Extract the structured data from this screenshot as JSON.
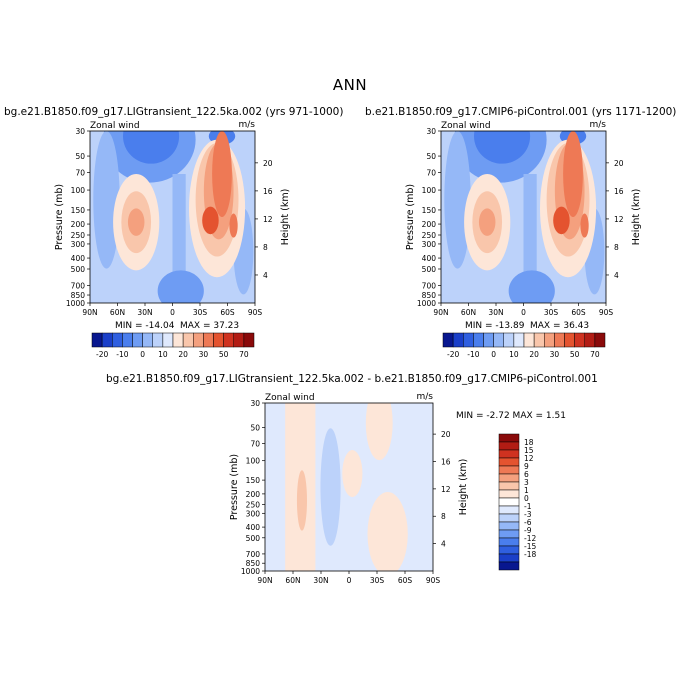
{
  "page": {
    "title": "ANN"
  },
  "chart_data": [
    {
      "type": "heatmap",
      "title": "bg.e21.B1850.f09_g17.LIGtransient_122.5ka.002 (yrs 971-1000)",
      "left_label": "Zonal wind",
      "right_label": "m/s",
      "xlabel": "",
      "ylabel": "Pressure (mb)",
      "y2label": "Height (km)",
      "x_ticks": [
        "90N",
        "60N",
        "30N",
        "0",
        "30S",
        "60S",
        "90S"
      ],
      "y_ticks": [
        "30",
        "50",
        "70",
        "100",
        "150",
        "200",
        "250",
        "300",
        "400",
        "500",
        "700",
        "850",
        "1000"
      ],
      "y2_ticks": [
        "20",
        "16",
        "12",
        "8",
        "4"
      ],
      "min": -14.04,
      "max": 37.23,
      "min_text": "MIN = -14.04",
      "max_text": "MAX = 37.23"
    },
    {
      "type": "heatmap",
      "title": "b.e21.B1850.f09_g17.CMIP6-piControl.001 (yrs 1171-1200)",
      "left_label": "Zonal wind",
      "right_label": "m/s",
      "xlabel": "",
      "ylabel": "Pressure (mb)",
      "y2label": "Height (km)",
      "x_ticks": [
        "90N",
        "60N",
        "30N",
        "0",
        "30S",
        "60S",
        "90S"
      ],
      "y_ticks": [
        "30",
        "50",
        "70",
        "100",
        "150",
        "200",
        "250",
        "300",
        "400",
        "500",
        "700",
        "850",
        "1000"
      ],
      "y2_ticks": [
        "20",
        "16",
        "12",
        "8",
        "4"
      ],
      "min": -13.89,
      "max": 36.43,
      "min_text": "MIN = -13.89",
      "max_text": "MAX = 36.43"
    },
    {
      "type": "heatmap",
      "title": "bg.e21.B1850.f09_g17.LIGtransient_122.5ka.002 - b.e21.B1850.f09_g17.CMIP6-piControl.001",
      "left_label": "Zonal wind",
      "right_label": "m/s",
      "xlabel": "",
      "ylabel": "Pressure (mb)",
      "y2label": "Height (km)",
      "x_ticks": [
        "90N",
        "60N",
        "30N",
        "0",
        "30S",
        "60S",
        "90S"
      ],
      "y_ticks": [
        "30",
        "50",
        "70",
        "100",
        "150",
        "200",
        "250",
        "300",
        "400",
        "500",
        "700",
        "850",
        "1000"
      ],
      "y2_ticks": [
        "20",
        "16",
        "12",
        "8",
        "4"
      ],
      "min": -2.72,
      "max": 1.51,
      "minmax_text": "MIN = -2.72   MAX = 1.51"
    }
  ],
  "colorbar_main": {
    "labels": [
      "-20",
      "-10",
      "0",
      "10",
      "20",
      "30",
      "50",
      "70"
    ],
    "colors": [
      "#08178f",
      "#1a3fc9",
      "#2f5fe0",
      "#4a7eed",
      "#6e9cf3",
      "#95b8f7",
      "#bcd2fa",
      "#dfe9fd",
      "#fde6d8",
      "#f9c6ab",
      "#f4a07e",
      "#ee7955",
      "#e4532f",
      "#cf3220",
      "#b21c14",
      "#8a0a0a"
    ]
  },
  "colorbar_diff": {
    "labels": [
      "18",
      "15",
      "12",
      "9",
      "6",
      "3",
      "1",
      "0",
      "-1",
      "-3",
      "-6",
      "-9",
      "-12",
      "-15",
      "-18"
    ],
    "colors": [
      "#8a0a0a",
      "#b21c14",
      "#cf3220",
      "#e4532f",
      "#ee7955",
      "#f4a07e",
      "#f9c6ab",
      "#fde6d8",
      "#ffffff",
      "#dfe9fd",
      "#bcd2fa",
      "#95b8f7",
      "#6e9cf3",
      "#4a7eed",
      "#2f5fe0",
      "#1a3fc9",
      "#08178f"
    ]
  }
}
